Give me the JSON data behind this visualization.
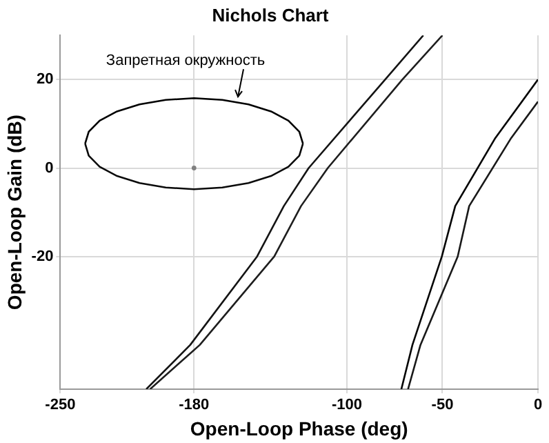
{
  "chart_data": {
    "type": "line",
    "title": "Nichols Chart",
    "xlabel": "Open-Loop Phase (deg)",
    "ylabel": "Open-Loop Gain (dB)",
    "series": [
      {
        "color": "#000000",
        "x": [
          -237,
          -235.1,
          -229.4,
          -220.3,
          -208.5,
          -194.8,
          -180,
          -165.2,
          -151.5,
          -139.7,
          -130.6,
          -124.9,
          -123
        ],
        "values": [
          5.5,
          8.2,
          10.7,
          12.8,
          14.4,
          15.4,
          15.8,
          15.4,
          14.4,
          12.8,
          10.7,
          8.2,
          5.5
        ]
      },
      {
        "color": "#0a0a0a",
        "x": [
          -237,
          -235.1,
          -229.4,
          -220.3,
          -208.5,
          -194.8,
          -180,
          -165.2,
          -151.5,
          -139.7,
          -130.6,
          -124.9,
          -123
        ],
        "values": [
          5.5,
          2.8,
          0.3,
          -1.8,
          -3.4,
          -4.4,
          -4.8,
          -4.4,
          -3.4,
          -1.8,
          0.3,
          2.8,
          5.5
        ]
      },
      {
        "color": "#141414",
        "x": [
          -205,
          -182,
          -147,
          -133,
          -120,
          -80,
          -60
        ],
        "values": [
          -50,
          -40,
          -20,
          -8.6,
          0,
          20,
          30
        ]
      },
      {
        "color": "#1e1e1e",
        "x": [
          -203,
          -177,
          -138,
          -124,
          -110,
          -71,
          -50
        ],
        "values": [
          -50,
          -40,
          -20,
          -8.6,
          0,
          20,
          30
        ]
      },
      {
        "color": "#050505",
        "x": [
          -71.5,
          -65.7,
          -50.3,
          -43.3,
          -22.3,
          0
        ],
        "values": [
          -50,
          -40,
          -20,
          -8.6,
          6.8,
          20
        ]
      },
      {
        "color": "#191919",
        "x": [
          -68,
          -61.5,
          -42,
          -36,
          -14,
          0
        ],
        "values": [
          -50,
          -40,
          -20,
          -8.6,
          6.8,
          15
        ]
      },
      {
        "type": "scatter",
        "marker": "circle",
        "color": "#808080",
        "x": [
          -180
        ],
        "values": [
          0
        ]
      }
    ],
    "annotations": [
      {
        "text": "Запретная окружность",
        "x": -157,
        "y": 15.8
      }
    ],
    "xlim": [
      -250,
      0
    ],
    "xticks": [
      -250,
      -180,
      -100,
      -50,
      0
    ],
    "ylim": [
      -50,
      30
    ],
    "yticks": [
      -20,
      0,
      20
    ],
    "grid": true,
    "marker": "none",
    "line_style": "solid"
  }
}
